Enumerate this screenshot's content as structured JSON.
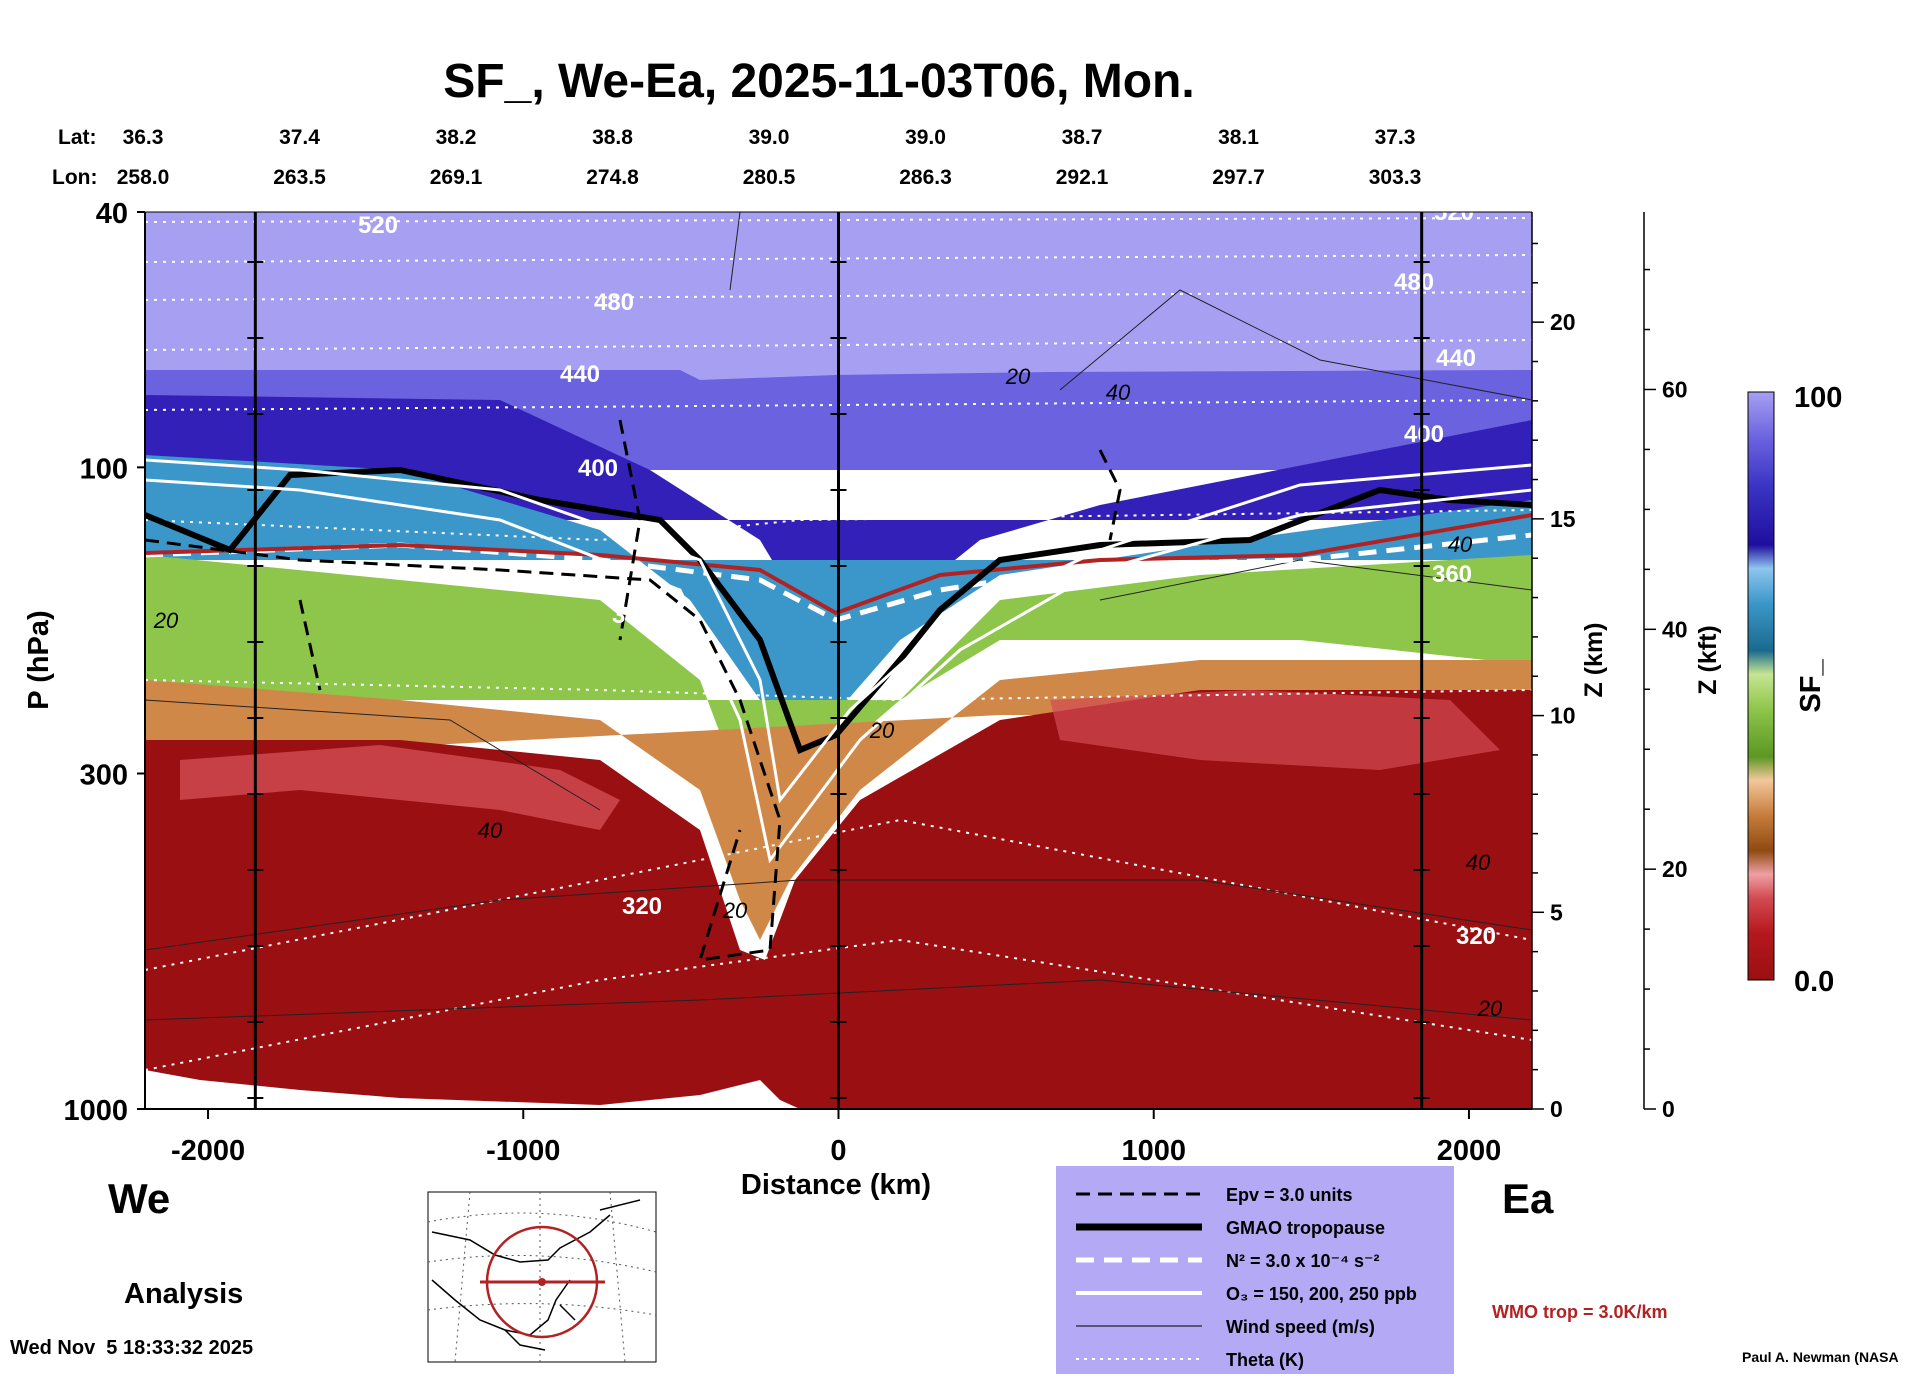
{
  "chart_data": {
    "type": "heatmap",
    "title": "SF_, We-Ea, 2025-11-03T06, Mon.",
    "xlabel": "Distance (km)",
    "ylabel": "P (hPa)",
    "right_axis_1_label": "Z (km)",
    "right_axis_2_label": "Z (kft)",
    "colorbar_label": "SF_",
    "xlim": [
      -2200,
      2200
    ],
    "ylim": [
      1000,
      40
    ],
    "x_ticks": [
      -2000,
      -1000,
      0,
      1000,
      2000
    ],
    "x_tick_labels": [
      "-2000",
      "-1000",
      "0",
      "1000",
      "2000"
    ],
    "p_ticks": [
      40,
      100,
      300,
      1000
    ],
    "p_tick_labels": [
      "40",
      "100",
      "300",
      "1000"
    ],
    "z_km_ticks": [
      0,
      5,
      10,
      15,
      20
    ],
    "z_km_labels": [
      "0",
      "5",
      "10",
      "15",
      "20"
    ],
    "z_kft_ticks": [
      0,
      20,
      40,
      60
    ],
    "z_kft_labels": [
      "0",
      "20",
      "40",
      "60"
    ],
    "colorbar_range": [
      0.0,
      100
    ],
    "colorbar_max_label": "100",
    "colorbar_min_label": "0.0",
    "lat_label": "Lat:",
    "lon_label": "Lon:",
    "lat": [
      "36.3",
      "37.4",
      "38.2",
      "38.8",
      "39.0",
      "39.0",
      "38.7",
      "38.1",
      "37.3"
    ],
    "lon": [
      "258.0",
      "263.5",
      "269.1",
      "274.8",
      "280.5",
      "286.3",
      "292.1",
      "297.7",
      "303.3"
    ],
    "vertical_markers_km": [
      -1850,
      0,
      1850
    ],
    "theta_levels": [
      "520",
      "480",
      "440",
      "400",
      "360",
      "320"
    ],
    "theta_labels": [
      "520",
      "480",
      "440",
      "400",
      "360",
      "320",
      "520",
      "480",
      "440",
      "400",
      "360",
      "320"
    ],
    "wind_labels": [
      "20",
      "40",
      "20",
      "40",
      "40",
      "20",
      "20",
      "20",
      "40"
    ],
    "left_direction": "We",
    "right_direction": "Ea",
    "analysis_label": "Analysis",
    "legend": [
      {
        "key": "epv",
        "label": "Epv = 3.0 units"
      },
      {
        "key": "gmao",
        "label": "GMAO tropopause"
      },
      {
        "key": "n2",
        "label": "N² = 3.0 x 10⁻⁴ s⁻²"
      },
      {
        "key": "o3",
        "label": "O₃ = 150, 200, 250 ppb"
      },
      {
        "key": "wind",
        "label": "Wind speed (m/s)"
      },
      {
        "key": "theta",
        "label": "Theta (K)"
      }
    ],
    "wmo_label": "WMO trop = 3.0K/km",
    "timestamp": "Wed Nov  5 18:33:32 2025",
    "credit": "Paul A. Newman (NASA"
  },
  "colors": {
    "legend_bg": "#b3a9f5",
    "wmo": "#b22222",
    "low": "#9a0f12",
    "high": "#a79ff2"
  }
}
